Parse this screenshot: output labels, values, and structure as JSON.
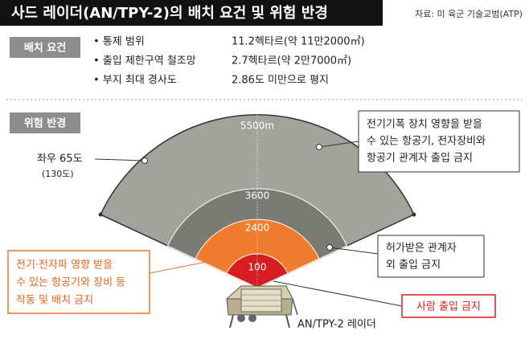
{
  "header": {
    "title": "사드 레이더(AN/TPY-2)의 배치 요건 및 위험 반경",
    "source": "자료: 미 육군 기술교범(ATP)"
  },
  "requirements": {
    "label": "배치 요건",
    "items": [
      {
        "name": "• 통제 범위",
        "value": "11.2헥타르(약 11만2000㎡)"
      },
      {
        "name": "• 출입 제한구역 철조망",
        "value": "2.7헥타르(약 2만7000㎡)"
      },
      {
        "name": "• 부지 최대 경사도",
        "value": "2.86도 미만으로 평지"
      }
    ]
  },
  "hazard": {
    "label": "위험 반경",
    "rings": [
      "5500m",
      "3600",
      "2400",
      "100"
    ],
    "angle": {
      "label": "좌우 65도",
      "sub": "(130도)"
    },
    "notes": [
      {
        "lines": [
          "전기기폭 장치 영향을 받을",
          "수 있는 항공기, 전자장비와",
          "항공기 관계자 출입 금지"
        ]
      },
      {
        "lines": [
          "허가받은 관계자",
          "외 출입 금지"
        ]
      },
      {
        "lines": [
          "전기·전자파 영향 받을",
          "수 있는 항공기와 장비 등",
          "작동 및 배치 금지"
        ]
      },
      {
        "lines": [
          "사람 출입 금지"
        ]
      }
    ],
    "radar": "AN/TPY-2 레이더"
  }
}
